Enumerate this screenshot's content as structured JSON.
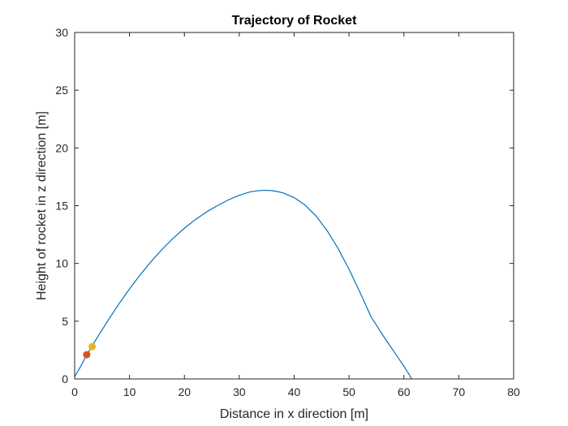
{
  "chart_data": {
    "type": "line",
    "title": "Trajectory of Rocket",
    "xlabel": "Distance in x direction [m]",
    "ylabel": "Height of rocket in z direction [m]",
    "xlim": [
      0,
      80
    ],
    "ylim": [
      0,
      30
    ],
    "xticks": [
      0,
      10,
      20,
      30,
      40,
      50,
      60,
      70,
      80
    ],
    "yticks": [
      0,
      5,
      10,
      15,
      20,
      25,
      30
    ],
    "grid": false,
    "legend": "none",
    "series": [
      {
        "color": "#0072bd",
        "x": [
          0.0,
          1.0,
          2.0,
          3.0,
          4.0,
          6.0,
          8.0,
          10.0,
          12.0,
          14.0,
          16.0,
          18.0,
          20.0,
          22.0,
          24.0,
          26.0,
          28.0,
          30.0,
          32.0,
          33.0,
          34.0,
          35.0,
          36.0,
          37.0,
          38.0,
          40.0,
          42.0,
          44.0,
          46.0,
          48.0,
          50.0,
          52.0,
          54.0,
          56.0,
          58.0,
          60.0,
          61.0,
          61.4
        ],
        "y": [
          0.2,
          1.0,
          1.9,
          2.7,
          3.5,
          5.0,
          6.45,
          7.8,
          9.05,
          10.2,
          11.25,
          12.2,
          13.05,
          13.8,
          14.45,
          15.0,
          15.5,
          15.9,
          16.2,
          16.27,
          16.32,
          16.33,
          16.3,
          16.22,
          16.1,
          15.7,
          15.05,
          14.1,
          12.85,
          11.3,
          9.5,
          7.5,
          5.4,
          3.9,
          2.5,
          1.1,
          0.35,
          0.0
        ]
      }
    ],
    "markers": [
      {
        "x": 2.2,
        "y": 2.1,
        "color": "#d95319"
      },
      {
        "x": 3.2,
        "y": 2.8,
        "color": "#edb120"
      }
    ]
  }
}
